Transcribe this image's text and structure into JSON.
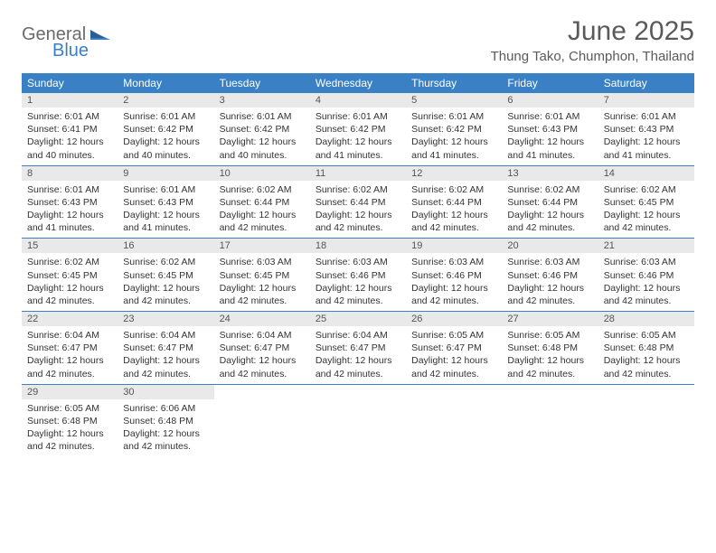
{
  "brand": {
    "word1": "General",
    "word2": "Blue",
    "accent": "#3a80c4",
    "gray": "#6a6a6a"
  },
  "title": "June 2025",
  "location": "Thung Tako, Chumphon, Thailand",
  "colors": {
    "header_bg": "#3a80c4",
    "header_text": "#ffffff",
    "daynum_bg": "#e9e9e9",
    "rule": "#3a80c4",
    "body_text": "#333333",
    "background": "#ffffff"
  },
  "day_headers": [
    "Sunday",
    "Monday",
    "Tuesday",
    "Wednesday",
    "Thursday",
    "Friday",
    "Saturday"
  ],
  "weeks": [
    [
      {
        "n": 1,
        "sunrise": "6:01 AM",
        "sunset": "6:41 PM",
        "day_h": 12,
        "day_m": 40
      },
      {
        "n": 2,
        "sunrise": "6:01 AM",
        "sunset": "6:42 PM",
        "day_h": 12,
        "day_m": 40
      },
      {
        "n": 3,
        "sunrise": "6:01 AM",
        "sunset": "6:42 PM",
        "day_h": 12,
        "day_m": 40
      },
      {
        "n": 4,
        "sunrise": "6:01 AM",
        "sunset": "6:42 PM",
        "day_h": 12,
        "day_m": 41
      },
      {
        "n": 5,
        "sunrise": "6:01 AM",
        "sunset": "6:42 PM",
        "day_h": 12,
        "day_m": 41
      },
      {
        "n": 6,
        "sunrise": "6:01 AM",
        "sunset": "6:43 PM",
        "day_h": 12,
        "day_m": 41
      },
      {
        "n": 7,
        "sunrise": "6:01 AM",
        "sunset": "6:43 PM",
        "day_h": 12,
        "day_m": 41
      }
    ],
    [
      {
        "n": 8,
        "sunrise": "6:01 AM",
        "sunset": "6:43 PM",
        "day_h": 12,
        "day_m": 41
      },
      {
        "n": 9,
        "sunrise": "6:01 AM",
        "sunset": "6:43 PM",
        "day_h": 12,
        "day_m": 41
      },
      {
        "n": 10,
        "sunrise": "6:02 AM",
        "sunset": "6:44 PM",
        "day_h": 12,
        "day_m": 42
      },
      {
        "n": 11,
        "sunrise": "6:02 AM",
        "sunset": "6:44 PM",
        "day_h": 12,
        "day_m": 42
      },
      {
        "n": 12,
        "sunrise": "6:02 AM",
        "sunset": "6:44 PM",
        "day_h": 12,
        "day_m": 42
      },
      {
        "n": 13,
        "sunrise": "6:02 AM",
        "sunset": "6:44 PM",
        "day_h": 12,
        "day_m": 42
      },
      {
        "n": 14,
        "sunrise": "6:02 AM",
        "sunset": "6:45 PM",
        "day_h": 12,
        "day_m": 42
      }
    ],
    [
      {
        "n": 15,
        "sunrise": "6:02 AM",
        "sunset": "6:45 PM",
        "day_h": 12,
        "day_m": 42
      },
      {
        "n": 16,
        "sunrise": "6:02 AM",
        "sunset": "6:45 PM",
        "day_h": 12,
        "day_m": 42
      },
      {
        "n": 17,
        "sunrise": "6:03 AM",
        "sunset": "6:45 PM",
        "day_h": 12,
        "day_m": 42
      },
      {
        "n": 18,
        "sunrise": "6:03 AM",
        "sunset": "6:46 PM",
        "day_h": 12,
        "day_m": 42
      },
      {
        "n": 19,
        "sunrise": "6:03 AM",
        "sunset": "6:46 PM",
        "day_h": 12,
        "day_m": 42
      },
      {
        "n": 20,
        "sunrise": "6:03 AM",
        "sunset": "6:46 PM",
        "day_h": 12,
        "day_m": 42
      },
      {
        "n": 21,
        "sunrise": "6:03 AM",
        "sunset": "6:46 PM",
        "day_h": 12,
        "day_m": 42
      }
    ],
    [
      {
        "n": 22,
        "sunrise": "6:04 AM",
        "sunset": "6:47 PM",
        "day_h": 12,
        "day_m": 42
      },
      {
        "n": 23,
        "sunrise": "6:04 AM",
        "sunset": "6:47 PM",
        "day_h": 12,
        "day_m": 42
      },
      {
        "n": 24,
        "sunrise": "6:04 AM",
        "sunset": "6:47 PM",
        "day_h": 12,
        "day_m": 42
      },
      {
        "n": 25,
        "sunrise": "6:04 AM",
        "sunset": "6:47 PM",
        "day_h": 12,
        "day_m": 42
      },
      {
        "n": 26,
        "sunrise": "6:05 AM",
        "sunset": "6:47 PM",
        "day_h": 12,
        "day_m": 42
      },
      {
        "n": 27,
        "sunrise": "6:05 AM",
        "sunset": "6:48 PM",
        "day_h": 12,
        "day_m": 42
      },
      {
        "n": 28,
        "sunrise": "6:05 AM",
        "sunset": "6:48 PM",
        "day_h": 12,
        "day_m": 42
      }
    ],
    [
      {
        "n": 29,
        "sunrise": "6:05 AM",
        "sunset": "6:48 PM",
        "day_h": 12,
        "day_m": 42
      },
      {
        "n": 30,
        "sunrise": "6:06 AM",
        "sunset": "6:48 PM",
        "day_h": 12,
        "day_m": 42
      },
      null,
      null,
      null,
      null,
      null
    ]
  ],
  "labels": {
    "sunrise_prefix": "Sunrise: ",
    "sunset_prefix": "Sunset: ",
    "daylight_prefix": "Daylight: ",
    "hours_word": " hours",
    "and_word": "and ",
    "minutes_word": " minutes."
  }
}
